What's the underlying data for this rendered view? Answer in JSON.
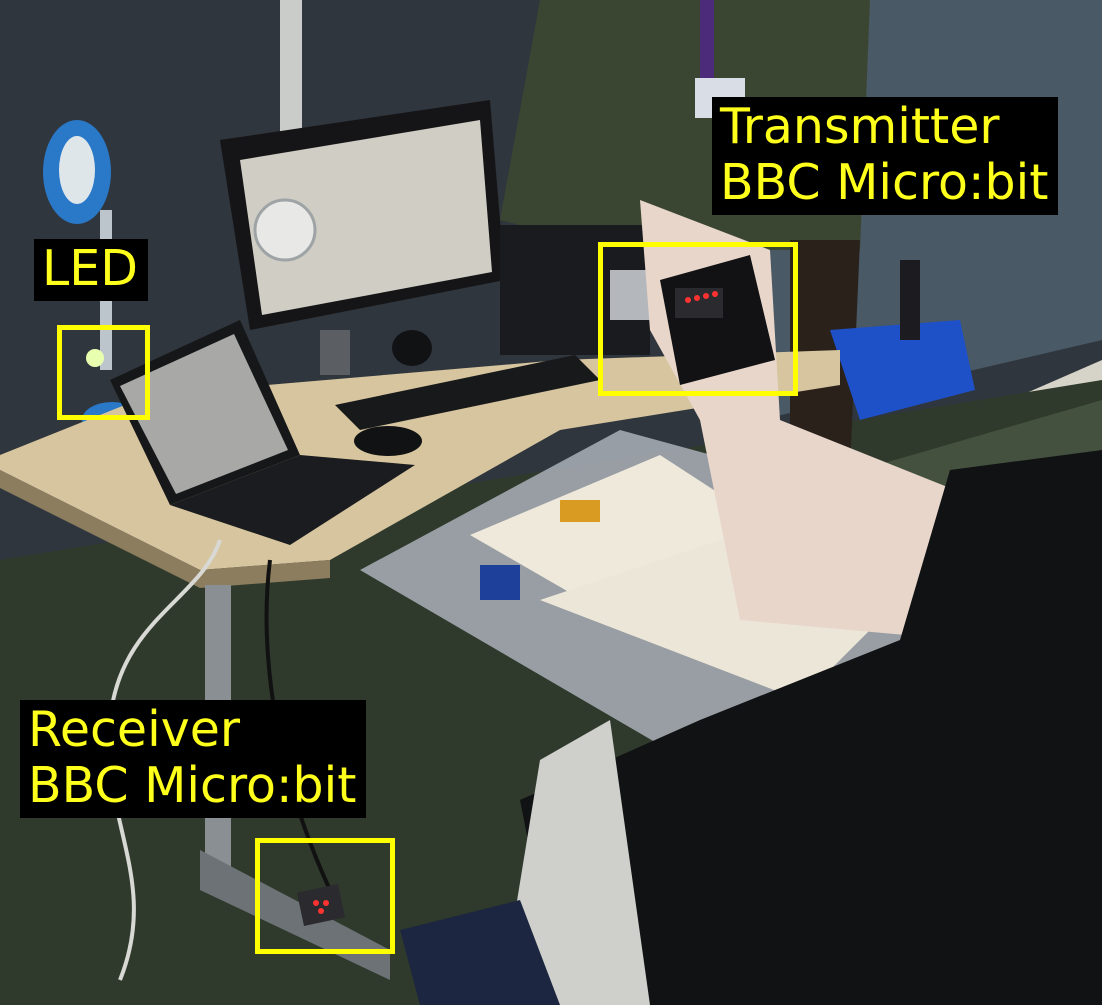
{
  "annotations": {
    "transmitter": {
      "line1": "Transmitter",
      "line2": "BBC Micro:bit"
    },
    "led": {
      "line1": "LED"
    },
    "receiver": {
      "line1": "Receiver",
      "line2": "BBC Micro:bit"
    }
  },
  "colors": {
    "label_background": "#000000",
    "label_text": "#ffff1c",
    "highlight_box": "#ffff00"
  }
}
